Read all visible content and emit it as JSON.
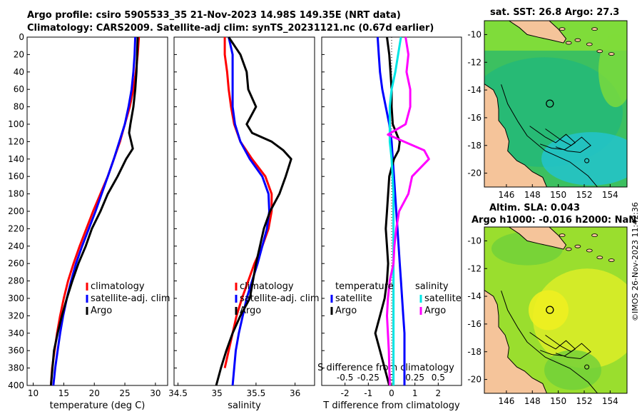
{
  "titles": {
    "main_line1": "Argo profile: csiro 5905533_35 21-Nov-2023 14.98S 149.35E (NRT data)",
    "main_line2": "Climatology: CARS2009. Satellite-adj clim: synTS_20231121.nc (0.67d earlier)",
    "sst_map": "sat. SST: 26.8 Argo: 27.3",
    "sla_line1": "Altim. SLA: 0.043",
    "sla_line2": "Argo h1000: -0.016 h2000: NaN"
  },
  "stamp": "©IMOS 26-Nov-2023 11:42:36",
  "colors": {
    "climatology": "#ff0000",
    "satellite": "#0000ff",
    "argo": "#000000",
    "salinity_diff": "#ff00ff",
    "salinity_sat": "#00e5e5",
    "land": "#f5c49a"
  },
  "depth_ticks": [
    "0",
    "20",
    "40",
    "60",
    "80",
    "100",
    "120",
    "140",
    "160",
    "180",
    "200",
    "220",
    "240",
    "260",
    "280",
    "300",
    "320",
    "340",
    "360",
    "380",
    "400"
  ],
  "chart_data": [
    {
      "type": "line",
      "id": "temperature",
      "xlabel": "temperature (deg C)",
      "xlim": [
        9,
        32
      ],
      "ylim": [
        0,
        400
      ],
      "xticks": [
        10,
        15,
        20,
        25,
        30
      ],
      "xtick_labels": [
        "10",
        "15",
        "20",
        "25",
        "30"
      ],
      "yticks": [
        0,
        20,
        40,
        60,
        80,
        100,
        120,
        140,
        160,
        180,
        200,
        220,
        240,
        260,
        280,
        300,
        320,
        340,
        360,
        380,
        400
      ],
      "legend": [
        "climatology",
        "satellite-adj. clim",
        "Argo"
      ],
      "legend_placement": "lower-right",
      "series": [
        {
          "name": "climatology",
          "color": "#ff0000",
          "x": [
            27.3,
            27.1,
            26.8,
            26.4,
            25.8,
            25.0,
            24.2,
            23.2,
            22.2,
            21.0,
            19.8,
            18.7,
            17.6,
            16.6,
            15.7,
            15.0,
            14.4,
            13.9,
            13.5,
            13.1,
            12.9
          ],
          "y": [
            0,
            20,
            40,
            60,
            80,
            100,
            120,
            140,
            160,
            180,
            200,
            220,
            240,
            260,
            280,
            300,
            320,
            340,
            360,
            380,
            400
          ]
        },
        {
          "name": "satellite-adj. clim",
          "color": "#0000ff",
          "x": [
            26.7,
            26.6,
            26.4,
            26.1,
            25.6,
            25.0,
            24.1,
            23.2,
            22.2,
            21.2,
            20.2,
            19.1,
            18.0,
            17.0,
            16.2,
            15.5,
            14.9,
            14.4,
            14.0,
            13.6,
            13.3
          ],
          "y": [
            0,
            20,
            40,
            60,
            80,
            100,
            120,
            140,
            160,
            180,
            200,
            220,
            240,
            260,
            280,
            300,
            320,
            340,
            360,
            380,
            400
          ]
        },
        {
          "name": "Argo",
          "color": "#000000",
          "x": [
            27.1,
            27.0,
            26.9,
            26.7,
            26.4,
            25.9,
            25.7,
            26.3,
            25.2,
            23.8,
            22.2,
            21.0,
            19.6,
            18.6,
            17.4,
            16.4,
            15.5,
            14.7,
            14.0,
            13.4,
            12.9
          ],
          "y": [
            0,
            20,
            40,
            60,
            80,
            100,
            110,
            128,
            140,
            160,
            180,
            200,
            220,
            240,
            260,
            280,
            300,
            320,
            340,
            360,
            400
          ]
        }
      ]
    },
    {
      "type": "line",
      "id": "salinity",
      "xlabel": "salinity",
      "xlim": [
        34.45,
        36.25
      ],
      "ylim": [
        0,
        400
      ],
      "xticks": [
        34.5,
        35,
        35.5,
        36
      ],
      "xtick_labels": [
        "34.5",
        "35",
        "35.5",
        "36"
      ],
      "legend": [
        "climatology",
        "satellite-adj. clim",
        "Argo"
      ],
      "legend_placement": "lower-right",
      "series": [
        {
          "name": "climatology",
          "color": "#ff0000",
          "x": [
            35.1,
            35.1,
            35.13,
            35.15,
            35.18,
            35.22,
            35.3,
            35.45,
            35.62,
            35.7,
            35.7,
            35.66,
            35.58,
            35.48,
            35.4,
            35.32,
            35.25,
            35.2,
            35.15,
            35.1
          ],
          "y": [
            0,
            20,
            40,
            60,
            80,
            100,
            120,
            140,
            160,
            180,
            200,
            220,
            240,
            260,
            280,
            300,
            320,
            340,
            360,
            380
          ]
        },
        {
          "name": "satellite-adj. clim",
          "color": "#0000ff",
          "x": [
            35.15,
            35.2,
            35.2,
            35.2,
            35.2,
            35.23,
            35.3,
            35.42,
            35.58,
            35.66,
            35.67,
            35.64,
            35.58,
            35.52,
            35.45,
            35.38,
            35.33,
            35.28,
            35.24,
            35.22,
            35.2
          ],
          "y": [
            0,
            20,
            40,
            60,
            80,
            100,
            120,
            140,
            160,
            180,
            200,
            220,
            240,
            260,
            280,
            300,
            320,
            340,
            360,
            380,
            400
          ]
        },
        {
          "name": "Argo",
          "color": "#000000",
          "x": [
            35.15,
            35.3,
            35.38,
            35.4,
            35.5,
            35.38,
            35.45,
            35.7,
            35.85,
            35.95,
            35.88,
            35.8,
            35.68,
            35.6,
            35.5,
            35.42,
            35.3,
            35.2,
            35.12,
            35.05,
            34.99
          ],
          "y": [
            0,
            20,
            40,
            60,
            80,
            100,
            110,
            120,
            130,
            140,
            160,
            180,
            200,
            220,
            260,
            300,
            320,
            340,
            360,
            380,
            400
          ]
        }
      ]
    },
    {
      "type": "line",
      "id": "differences",
      "xlabel": "T difference from climatology",
      "xlabel_top": "S difference from climatology",
      "xlim": [
        -3,
        3
      ],
      "ylim": [
        0,
        400
      ],
      "xticks": [
        -2,
        -1,
        0,
        1,
        2
      ],
      "xtick_labels": [
        "-2",
        "-1",
        "0",
        "1",
        "2"
      ],
      "xticks_top": [
        -0.5,
        -0.25,
        0,
        0.25,
        0.5
      ],
      "xtick_labels_top": [
        "-0.5",
        "-0.25",
        "0",
        "0.25",
        "0.5"
      ],
      "legend": [
        "temperature",
        "satellite",
        "Argo",
        "salinity",
        "satellite",
        "Argo"
      ],
      "legend_placement": "lower",
      "series": [
        {
          "name": "T satellite",
          "color": "#0000ff",
          "axis": "T",
          "x": [
            -0.6,
            -0.55,
            -0.5,
            -0.4,
            -0.25,
            -0.1,
            0,
            0.05,
            0.1,
            0.15,
            0.2,
            0.25,
            0.3,
            0.35,
            0.4,
            0.45,
            0.5,
            0.55,
            0.55,
            0.55,
            0.55
          ],
          "y": [
            0,
            20,
            40,
            60,
            80,
            100,
            120,
            140,
            160,
            180,
            200,
            220,
            240,
            260,
            280,
            300,
            320,
            340,
            360,
            380,
            400
          ]
        },
        {
          "name": "T Argo",
          "color": "#000000",
          "axis": "T",
          "x": [
            -0.2,
            -0.1,
            -0.05,
            0,
            0,
            0.05,
            0.35,
            0.3,
            0.1,
            -0.1,
            -0.2,
            -0.25,
            -0.2,
            -0.15,
            -0.2,
            -0.3,
            -0.5,
            -0.7,
            -0.5,
            -0.3,
            -0.1
          ],
          "y": [
            0,
            20,
            40,
            60,
            80,
            100,
            120,
            130,
            140,
            160,
            200,
            220,
            240,
            260,
            280,
            300,
            320,
            340,
            360,
            380,
            400
          ]
        },
        {
          "name": "S satellite",
          "color": "#00e5e5",
          "axis": "S",
          "x": [
            0.1,
            0.07,
            0.04,
            0,
            -0.02,
            -0.02,
            -0.02,
            0,
            0.01,
            0.02,
            0.02,
            0.02,
            0.02,
            0.02,
            0.02,
            0.02,
            0.02,
            0.02,
            0.02,
            0.02,
            0.02
          ],
          "y": [
            0,
            20,
            40,
            60,
            80,
            100,
            120,
            140,
            160,
            180,
            200,
            220,
            240,
            260,
            280,
            300,
            320,
            340,
            360,
            380,
            400
          ]
        },
        {
          "name": "S Argo",
          "color": "#ff00ff",
          "axis": "S",
          "x": [
            0.15,
            0.18,
            0.16,
            0.2,
            0.2,
            0.15,
            -0.04,
            0.35,
            0.4,
            0.22,
            0.18,
            0.08,
            0.05,
            0.03,
            0.02,
            -0.02,
            -0.04,
            -0.05,
            -0.04,
            -0.03,
            -0.02
          ],
          "y": [
            0,
            20,
            40,
            60,
            80,
            100,
            112,
            130,
            140,
            160,
            180,
            200,
            220,
            240,
            260,
            280,
            300,
            320,
            340,
            360,
            400
          ]
        }
      ]
    },
    {
      "type": "heatmap",
      "id": "sst_map",
      "title": "sat. SST: 26.8 Argo: 27.3",
      "xlim": [
        144.3,
        155.3
      ],
      "ylim": [
        -21,
        -9
      ],
      "xticks": [
        146,
        148,
        150,
        152,
        154
      ],
      "xtick_labels": [
        "146",
        "148",
        "150",
        "152",
        "154"
      ],
      "yticks": [
        -10,
        -12,
        -14,
        -16,
        -18,
        -20
      ],
      "ytick_labels": [
        "-10",
        "-12",
        "-14",
        "-16",
        "-18",
        "-20"
      ],
      "argo_position": {
        "lon": 149.35,
        "lat": -14.98
      }
    },
    {
      "type": "heatmap",
      "id": "sla_map",
      "title": "Altim. SLA: 0.043",
      "subtitle": "Argo h1000: -0.016 h2000: NaN",
      "xlim": [
        144.3,
        155.3
      ],
      "ylim": [
        -21,
        -9
      ],
      "xticks": [
        146,
        148,
        150,
        152,
        154
      ],
      "xtick_labels": [
        "146",
        "148",
        "150",
        "152",
        "154"
      ],
      "yticks": [
        -10,
        -12,
        -14,
        -16,
        -18,
        -20
      ],
      "ytick_labels": [
        "-10",
        "-12",
        "-14",
        "-16",
        "-18",
        "-20"
      ],
      "argo_position": {
        "lon": 149.35,
        "lat": -14.98
      }
    }
  ]
}
